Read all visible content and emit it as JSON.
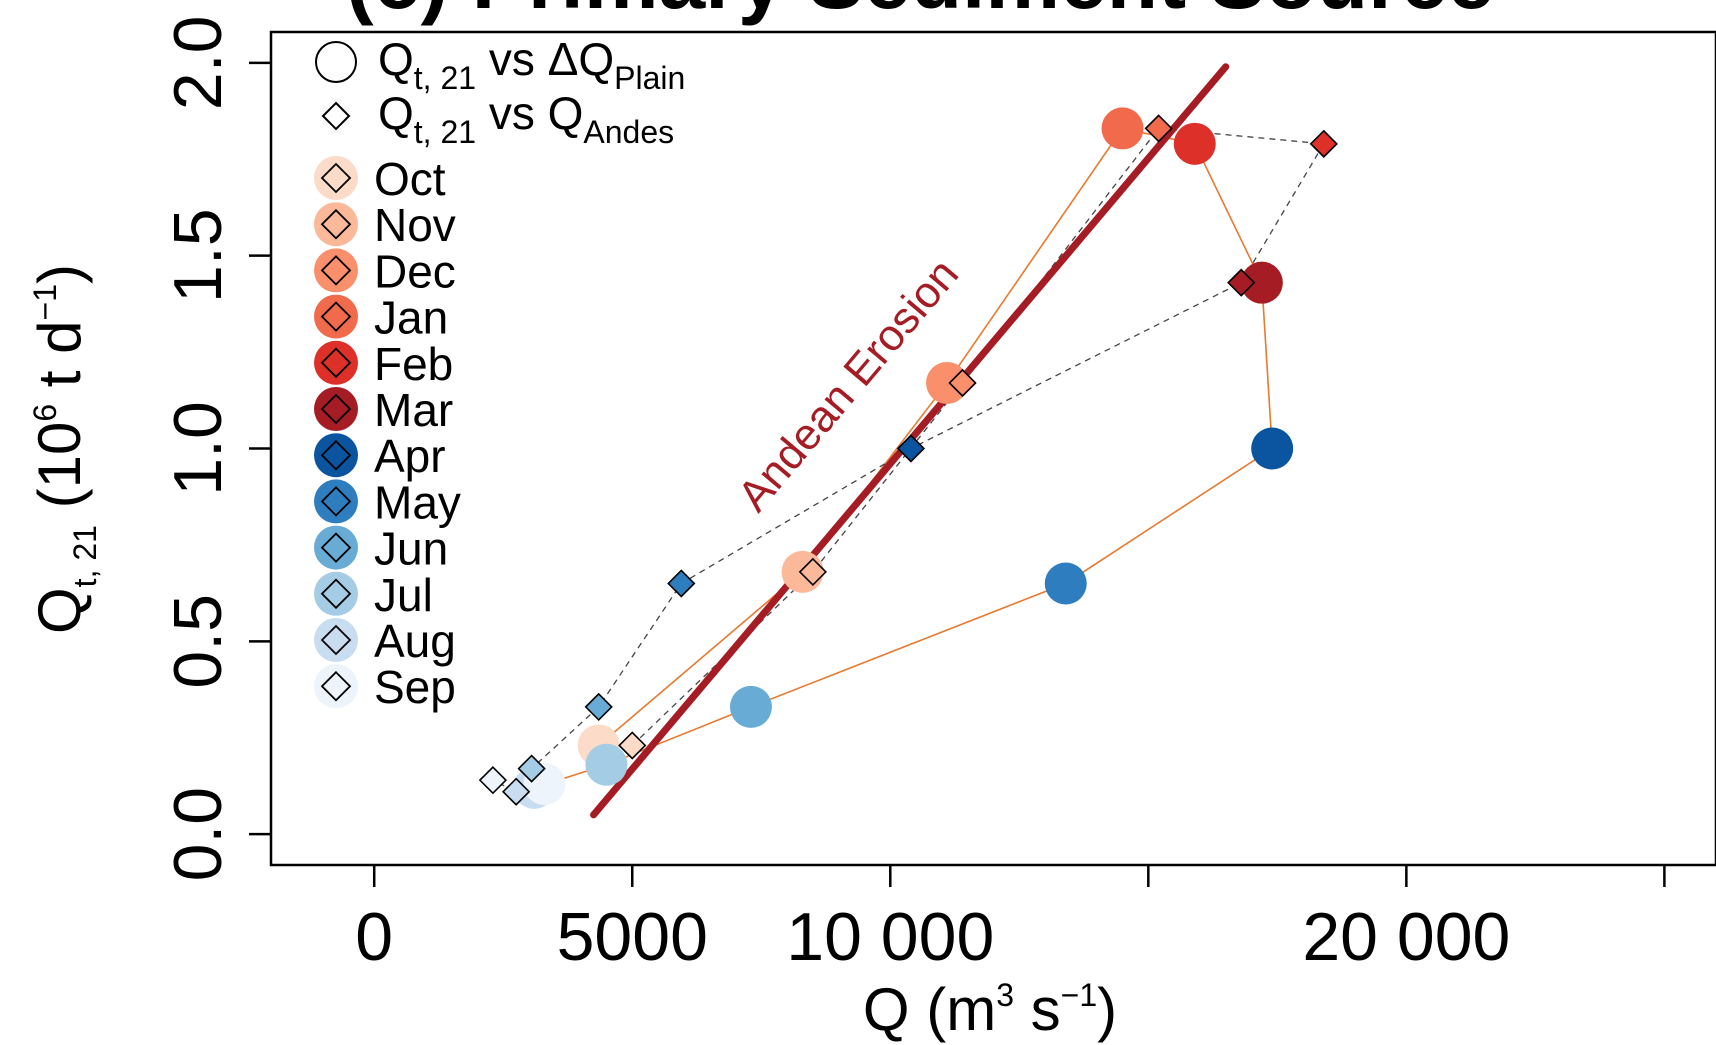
{
  "chart_data": {
    "type": "scatter",
    "title": "(c) Primary Sediment Source",
    "xlabel": {
      "base": "Q (m",
      "sup1": "3",
      "mid": " s",
      "sup2": "−1",
      "end": ")"
    },
    "ylabel": {
      "base": "Q",
      "sub": "t, 21",
      "mid": " (10",
      "sup1": "6",
      "mid2": " t d",
      "sup2": "−1",
      "end": ")"
    },
    "xlim": [
      -2000,
      26000
    ],
    "ylim": [
      -0.08,
      2.08
    ],
    "x_ticks": [
      {
        "value": 0,
        "label": "0"
      },
      {
        "value": 5000,
        "label": "5000"
      },
      {
        "value": 10000,
        "label": "10 000"
      },
      {
        "value": 15000,
        "label": ""
      },
      {
        "value": 20000,
        "label": "20 000"
      },
      {
        "value": 25000,
        "label": ""
      }
    ],
    "y_ticks": [
      {
        "value": 0.0,
        "label": "0.0"
      },
      {
        "value": 0.5,
        "label": "0.5"
      },
      {
        "value": 1.0,
        "label": "1.0"
      },
      {
        "value": 1.5,
        "label": "1.5"
      },
      {
        "value": 2.0,
        "label": "2.0"
      }
    ],
    "grid": false,
    "legend_position": "top-left",
    "months": [
      "Oct",
      "Nov",
      "Dec",
      "Jan",
      "Feb",
      "Mar",
      "Apr",
      "May",
      "Jun",
      "Jul",
      "Aug",
      "Sep"
    ],
    "month_colors": [
      "#fcdbc8",
      "#fbb99a",
      "#f9906b",
      "#f26a4c",
      "#dc3028",
      "#a51c24",
      "#0a54a0",
      "#2d7dbf",
      "#68acd6",
      "#a4cce4",
      "#c9ddf0",
      "#eef4fc"
    ],
    "series": [
      {
        "name": {
          "base": "Q",
          "sub": "t, 21",
          "mid": " vs ΔQ",
          "sub2": "Plain"
        },
        "marker": "circle",
        "line_color": "#e8792e",
        "x": [
          4350,
          8300,
          11100,
          14500,
          15900,
          17200,
          17400,
          13400,
          7300,
          4500,
          3100,
          3300
        ],
        "y": [
          0.23,
          0.68,
          1.17,
          1.83,
          1.79,
          1.43,
          1.0,
          0.65,
          0.33,
          0.18,
          0.12,
          0.13
        ]
      },
      {
        "name": {
          "base": "Q",
          "sub": "t, 21",
          "mid": " vs Q",
          "sub2": "Andes"
        },
        "marker": "diamond",
        "line_color": "#444444",
        "x": [
          5000,
          8500,
          11400,
          15200,
          18400,
          16800,
          10400,
          5950,
          4350,
          3050,
          2750,
          2300
        ],
        "y": [
          0.23,
          0.68,
          1.17,
          1.83,
          1.79,
          1.43,
          1.0,
          0.65,
          0.33,
          0.17,
          0.11,
          0.14
        ]
      }
    ],
    "trend_line": {
      "label": "Andean Erosion",
      "color": "#a51c24",
      "x": [
        4250,
        16500
      ],
      "y": [
        0.05,
        1.99
      ]
    }
  }
}
